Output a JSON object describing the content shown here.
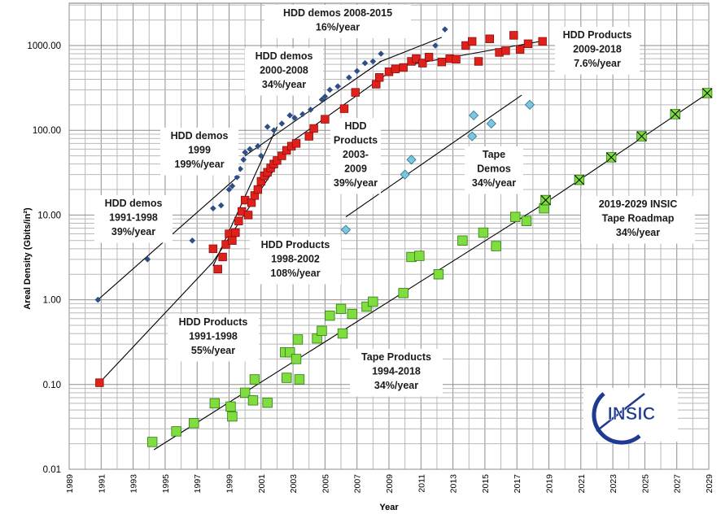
{
  "chart_data": {
    "type": "scatter",
    "title": "",
    "xlabel": "Year",
    "ylabel": "Areal Density (Gbits/in²)",
    "xlim": [
      1989,
      2029
    ],
    "ylim": [
      0.01,
      3000
    ],
    "yscale": "log",
    "xticks": [
      "1989",
      "1991",
      "1993",
      "1995",
      "1997",
      "1999",
      "2001",
      "2003",
      "2005",
      "2007",
      "2009",
      "2011",
      "2013",
      "2015",
      "2017",
      "2019",
      "2021",
      "2023",
      "2025",
      "2027",
      "2029"
    ],
    "yticks": [
      "0.01",
      "0.10",
      "1.00",
      "10.00",
      "100.00",
      "1000.00"
    ],
    "series": [
      {
        "name": "HDD demos",
        "marker": "diamond",
        "color": "#2e4f86",
        "points": [
          [
            1990.8,
            1.0
          ],
          [
            1993.9,
            3.0
          ],
          [
            1996.7,
            5.0
          ],
          [
            1998.0,
            12
          ],
          [
            1998.5,
            13
          ],
          [
            1999.0,
            20
          ],
          [
            1999.2,
            22
          ],
          [
            1999.5,
            28
          ],
          [
            1999.7,
            35
          ],
          [
            1999.9,
            45
          ],
          [
            2000.0,
            55
          ],
          [
            2000.3,
            60
          ],
          [
            2000.8,
            65
          ],
          [
            2001.0,
            50
          ],
          [
            2001.4,
            110
          ],
          [
            2001.8,
            100
          ],
          [
            2002.3,
            120
          ],
          [
            2002.8,
            150
          ],
          [
            2003.1,
            140
          ],
          [
            2003.6,
            155
          ],
          [
            2004.1,
            175
          ],
          [
            2004.8,
            230
          ],
          [
            2005.0,
            250
          ],
          [
            2005.3,
            300
          ],
          [
            2005.8,
            330
          ],
          [
            2006.5,
            420
          ],
          [
            2007.0,
            500
          ],
          [
            2007.5,
            620
          ],
          [
            2008.0,
            650
          ],
          [
            2008.5,
            800
          ],
          [
            2011.9,
            1000
          ],
          [
            2012.5,
            1550
          ]
        ]
      },
      {
        "name": "HDD Products",
        "marker": "square",
        "color": "#e0201a",
        "points": [
          [
            1990.9,
            0.105
          ],
          [
            1998.0,
            4.0
          ],
          [
            1998.3,
            2.3
          ],
          [
            1998.6,
            3.2
          ],
          [
            1998.8,
            4.5
          ],
          [
            1999.0,
            6.0
          ],
          [
            1999.2,
            5.0
          ],
          [
            1999.4,
            6.2
          ],
          [
            1999.6,
            8.5
          ],
          [
            1999.8,
            11
          ],
          [
            2000.0,
            15
          ],
          [
            2000.2,
            10
          ],
          [
            2000.4,
            14
          ],
          [
            2000.6,
            17
          ],
          [
            2000.8,
            20
          ],
          [
            2001.0,
            25
          ],
          [
            2001.2,
            29
          ],
          [
            2001.4,
            32
          ],
          [
            2001.6,
            36
          ],
          [
            2001.8,
            40
          ],
          [
            2002.0,
            44
          ],
          [
            2002.3,
            50
          ],
          [
            2002.6,
            58
          ],
          [
            2002.9,
            65
          ],
          [
            2003.2,
            70
          ],
          [
            2004.0,
            85
          ],
          [
            2004.3,
            105
          ],
          [
            2005.0,
            135
          ],
          [
            2006.2,
            180
          ],
          [
            2006.9,
            280
          ],
          [
            2008.2,
            350
          ],
          [
            2008.4,
            420
          ],
          [
            2009.0,
            490
          ],
          [
            2009.4,
            530
          ],
          [
            2009.9,
            550
          ],
          [
            2010.4,
            650
          ],
          [
            2010.7,
            700
          ],
          [
            2011.1,
            620
          ],
          [
            2011.5,
            730
          ],
          [
            2012.3,
            640
          ],
          [
            2012.8,
            700
          ],
          [
            2013.2,
            690
          ],
          [
            2013.8,
            1000
          ],
          [
            2014.2,
            1120
          ],
          [
            2014.6,
            650
          ],
          [
            2015.3,
            1200
          ],
          [
            2015.9,
            830
          ],
          [
            2016.3,
            870
          ],
          [
            2016.8,
            1320
          ],
          [
            2017.2,
            900
          ],
          [
            2017.7,
            1050
          ],
          [
            2018.6,
            1120
          ]
        ]
      },
      {
        "name": "Tape Demos",
        "marker": "diamond",
        "color": "#7cc6e0",
        "points": [
          [
            2006.3,
            6.7
          ],
          [
            2010.0,
            30
          ],
          [
            2010.4,
            45
          ],
          [
            2014.2,
            85
          ],
          [
            2014.3,
            150
          ],
          [
            2015.4,
            120
          ],
          [
            2017.8,
            200
          ]
        ]
      },
      {
        "name": "Tape Products",
        "marker": "square",
        "color": "#7fdd3f",
        "points": [
          [
            1994.2,
            0.021
          ],
          [
            1995.7,
            0.028
          ],
          [
            1996.8,
            0.035
          ],
          [
            1998.1,
            0.06
          ],
          [
            1999.1,
            0.055
          ],
          [
            1999.2,
            0.042
          ],
          [
            2000.0,
            0.08
          ],
          [
            2000.5,
            0.065
          ],
          [
            2000.6,
            0.115
          ],
          [
            2001.4,
            0.061
          ],
          [
            2002.5,
            0.24
          ],
          [
            2002.6,
            0.12
          ],
          [
            2002.8,
            0.24
          ],
          [
            2003.2,
            0.2
          ],
          [
            2003.3,
            0.34
          ],
          [
            2003.4,
            0.115
          ],
          [
            2004.5,
            0.35
          ],
          [
            2004.8,
            0.43
          ],
          [
            2005.3,
            0.65
          ],
          [
            2006.0,
            0.78
          ],
          [
            2006.1,
            0.4
          ],
          [
            2006.7,
            0.68
          ],
          [
            2007.6,
            0.83
          ],
          [
            2008.0,
            0.95
          ],
          [
            2009.9,
            1.2
          ],
          [
            2010.4,
            3.2
          ],
          [
            2010.9,
            3.3
          ],
          [
            2012.1,
            2.0
          ],
          [
            2013.6,
            5.0
          ],
          [
            2014.9,
            6.2
          ],
          [
            2015.7,
            4.3
          ],
          [
            2016.9,
            9.5
          ],
          [
            2017.6,
            8.5
          ],
          [
            2018.7,
            12
          ],
          [
            2018.8,
            15
          ]
        ]
      },
      {
        "name": "INSIC Tape Roadmap",
        "marker": "x-square",
        "color": "#7fdd3f",
        "points": [
          [
            2018.8,
            15
          ],
          [
            2020.9,
            26
          ],
          [
            2022.9,
            48
          ],
          [
            2024.8,
            85
          ],
          [
            2026.9,
            155
          ],
          [
            2028.9,
            275
          ]
        ]
      }
    ],
    "trendlines": [
      {
        "name": "HDD demos 1991-1998",
        "from": [
          1990.8,
          1.0
        ],
        "to": [
          1999.5,
          28
        ]
      },
      {
        "name": "HDD demos 1999",
        "from": [
          1998.0,
          2.5
        ],
        "to": [
          2002.0,
          110
        ]
      },
      {
        "name": "HDD demos 2000-2008",
        "from": [
          2000.0,
          50
        ],
        "to": [
          2008.5,
          650
        ]
      },
      {
        "name": "HDD demos 2008-2015",
        "from": [
          2008.4,
          640
        ],
        "to": [
          2012.3,
          1250
        ]
      },
      {
        "name": "HDD Products 1991-1998",
        "from": [
          1991.0,
          0.11
        ],
        "to": [
          1998.0,
          2.8
        ]
      },
      {
        "name": "HDD Products 1998-2002",
        "from": [
          1998.0,
          2.8
        ],
        "to": [
          2003.0,
          75
        ]
      },
      {
        "name": "HDD Products 2003-2009",
        "from": [
          2003.0,
          75
        ],
        "to": [
          2009.5,
          560
        ]
      },
      {
        "name": "HDD Products 2009-2018",
        "from": [
          2009.5,
          560
        ],
        "to": [
          2018.7,
          1140
        ]
      },
      {
        "name": "Tape Demos",
        "from": [
          2006.3,
          9.5
        ],
        "to": [
          2017.3,
          260
        ]
      },
      {
        "name": "Tape Products 1994-2018",
        "from": [
          1994.3,
          0.017
        ],
        "to": [
          2018.8,
          14.0
        ]
      },
      {
        "name": "2019-2029 INSIC Tape Roadmap",
        "from": [
          2018.8,
          14.0
        ],
        "to": [
          2028.9,
          270
        ]
      }
    ],
    "annotations": [
      {
        "id": "hdd-demos-2008-2015",
        "lines": [
          "HDD demos 2008-2015",
          "16%/year"
        ]
      },
      {
        "id": "hdd-demos-2000-2008",
        "lines": [
          "HDD demos",
          "2000-2008",
          "34%/year"
        ]
      },
      {
        "id": "hdd-demos-1999",
        "lines": [
          "HDD demos",
          "1999",
          "199%/year"
        ]
      },
      {
        "id": "hdd-demos-1991-1998",
        "lines": [
          "HDD demos",
          "1991-1998",
          "39%/year"
        ]
      },
      {
        "id": "hdd-products-2003-2009",
        "lines": [
          "HDD",
          "Products",
          "2003-",
          "2009",
          "39%/year"
        ]
      },
      {
        "id": "hdd-products-2009-2018",
        "lines": [
          "HDD Products",
          "2009-2018",
          "7.6%/year"
        ]
      },
      {
        "id": "tape-demos",
        "lines": [
          "Tape",
          "Demos",
          "34%/year"
        ]
      },
      {
        "id": "hdd-products-1998-2002",
        "lines": [
          "HDD Products",
          "1998-2002",
          "108%/year"
        ]
      },
      {
        "id": "insic-roadmap",
        "lines": [
          "2019-2029 INSIC",
          "Tape Roadmap",
          "34%/year"
        ]
      },
      {
        "id": "hdd-products-1991-1998",
        "lines": [
          "HDD Products",
          "1991-1998",
          "55%/year"
        ]
      },
      {
        "id": "tape-products-1994-2018",
        "lines": [
          "Tape Products",
          "1994-2018",
          "34%/year"
        ]
      }
    ],
    "logo_text": "INSIC"
  }
}
